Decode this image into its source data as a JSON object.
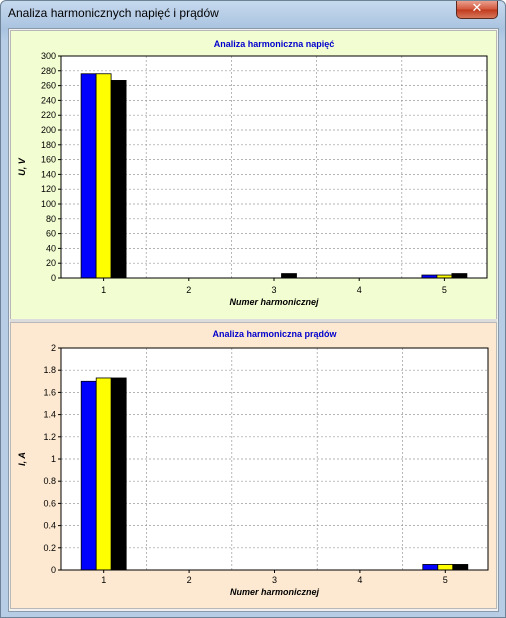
{
  "window": {
    "title": "Analiza harmonicznych napięć i prądów",
    "close_glyph": "✕"
  },
  "colors": {
    "phase1": "#0000ff",
    "phase2": "#ffff00",
    "phase3": "#000000",
    "title_text": "#0000cc",
    "voltage_bg": "#f3fdd2",
    "current_bg": "#fde9d1"
  },
  "chart_data": [
    {
      "type": "bar",
      "title": "Analiza harmoniczna napięć",
      "xlabel": "Numer harmonicznej",
      "ylabel": "U, V",
      "categories": [
        "1",
        "2",
        "3",
        "4",
        "5"
      ],
      "ylim": [
        0,
        300
      ],
      "ytick_step": 20,
      "grid": true,
      "series": [
        {
          "values": [
            276,
            0,
            0,
            0,
            4
          ]
        },
        {
          "values": [
            276,
            0,
            0,
            0,
            4
          ]
        },
        {
          "values": [
            267,
            0,
            6,
            0,
            6
          ]
        }
      ]
    },
    {
      "type": "bar",
      "title": "Analiza harmoniczna prądów",
      "xlabel": "Numer harmonicznej",
      "ylabel": "I, A",
      "categories": [
        "1",
        "2",
        "3",
        "4",
        "5"
      ],
      "ylim": [
        0,
        2
      ],
      "ytick_step": 0.2,
      "grid": true,
      "series": [
        {
          "values": [
            1.7,
            0,
            0,
            0,
            0.05
          ]
        },
        {
          "values": [
            1.73,
            0,
            0,
            0,
            0.05
          ]
        },
        {
          "values": [
            1.73,
            0,
            0,
            0,
            0.05
          ]
        }
      ]
    }
  ]
}
